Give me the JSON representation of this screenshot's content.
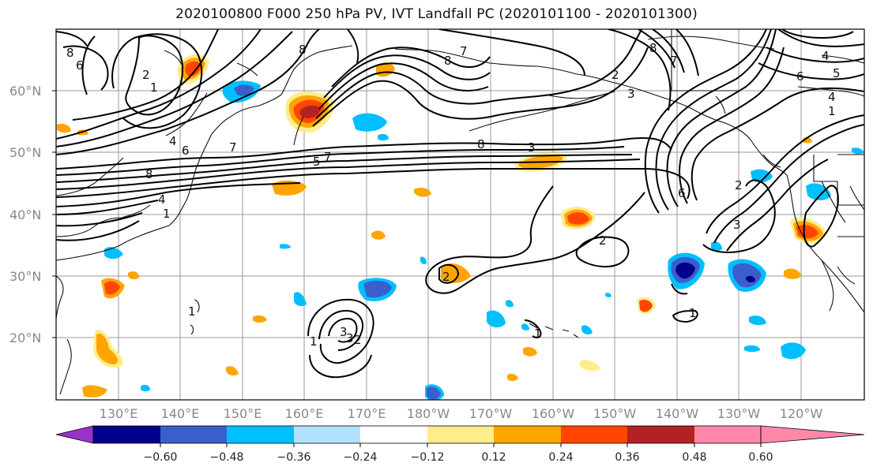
{
  "title": "2020100800 F000 250 hPa PV, IVT Landfall PC (2020101100 - 2020101300)",
  "lat_labels": [
    "60°N",
    "50°N",
    "40°N",
    "30°N",
    "20°N"
  ],
  "lon_labels": [
    "130°E",
    "140°E",
    "150°E",
    "160°E",
    "170°E",
    "180°W",
    "170°W",
    "160°W",
    "150°W",
    "140°W",
    "130°W",
    "120°W"
  ],
  "colorbar": {
    "colors": [
      "#9932CC",
      "#00008B",
      "#3A5FCD",
      "#00BFFF",
      "#B0E2FF",
      "#FFFFFF",
      "#FFEC8B",
      "#FFA500",
      "#FF4500",
      "#B22222",
      "#FF88AA"
    ],
    "tick_labels": [
      "−0.60",
      "−0.48",
      "−0.36",
      "−0.24",
      "−0.12",
      "0.12",
      "0.24",
      "0.36",
      "0.48",
      "0.60"
    ]
  },
  "contour_labels": [
    "8",
    "6",
    "2",
    "1",
    "4",
    "6",
    "7",
    "8",
    "1",
    "4",
    "8",
    "8",
    "7",
    "2",
    "3",
    "8",
    "7",
    "3",
    "4",
    "6",
    "5",
    "1",
    "4",
    "7",
    "8",
    "3",
    "2",
    "5",
    "6",
    "2",
    "3",
    "2",
    "1",
    "1",
    "3",
    "2",
    "1",
    "1"
  ],
  "pv_contour_levels": [
    1,
    2,
    3,
    4,
    5,
    6,
    7,
    8
  ]
}
